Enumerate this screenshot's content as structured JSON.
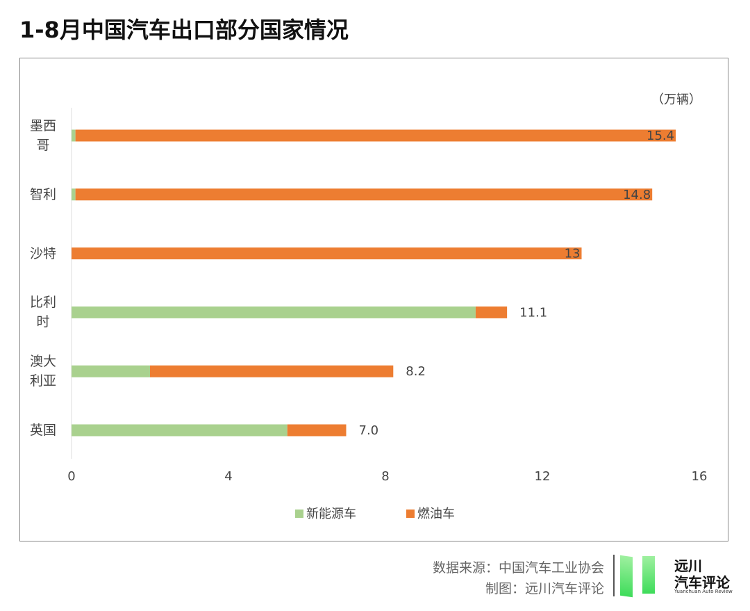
{
  "chart_data": {
    "type": "stacked-barh",
    "title": "1-8月中国汽车出口部分国家情况",
    "unit": "（万辆）",
    "categories": [
      "墨西哥",
      "智利",
      "沙特",
      "比利时",
      "澳大利亚",
      "英国"
    ],
    "series": [
      {
        "name": "新能源车",
        "color": "#a9d18e",
        "values": [
          0.1,
          0.1,
          0,
          10.3,
          2.0,
          5.5
        ]
      },
      {
        "name": "燃油车",
        "color": "#ed7d31",
        "values": [
          15.3,
          14.7,
          13,
          0.8,
          6.2,
          1.5
        ]
      }
    ],
    "totals": [
      15.4,
      14.8,
      13,
      11.1,
      8.2,
      7.0
    ],
    "total_labels": [
      "15.4",
      "14.8",
      "13",
      "11.1",
      "8.2",
      "7.0"
    ],
    "xlim": [
      0,
      16
    ],
    "xticks": [
      0,
      4,
      8,
      12,
      16
    ],
    "legend": "bottom"
  },
  "footer": {
    "source": "数据来源：中国汽车工业协会",
    "credit": "制图：远川汽车评论"
  },
  "logo": {
    "name": "远川",
    "sub": "汽车评论",
    "en": "Yuanchuan Auto Review"
  }
}
